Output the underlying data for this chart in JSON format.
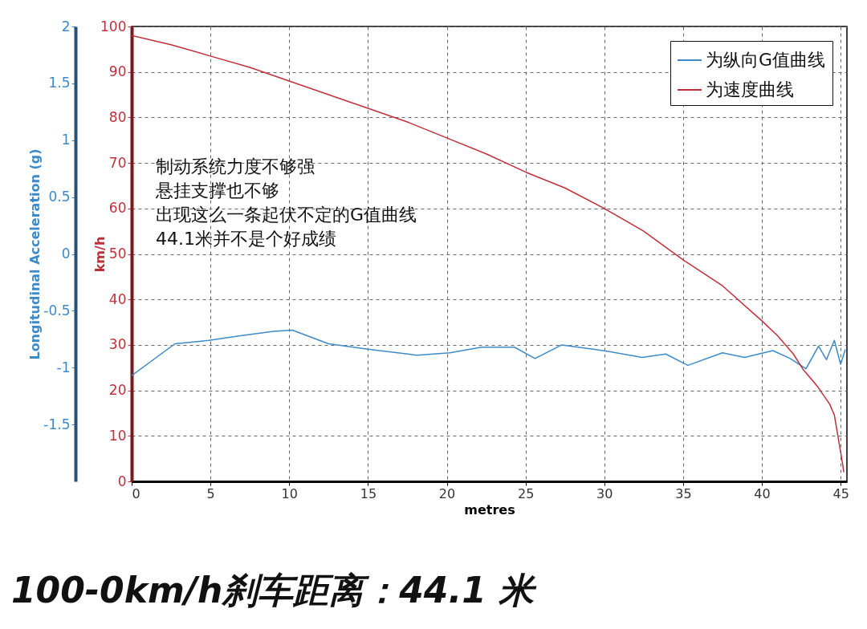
{
  "chart_data": {
    "type": "line",
    "xlabel": "metres",
    "ylabel": "Longitudinal Acceleration (g)",
    "y2label": "km/h",
    "xlim": [
      0,
      45.4
    ],
    "xticks": [
      0,
      5,
      10,
      15,
      20,
      25,
      30,
      35,
      40,
      45
    ],
    "ylim": [
      -2,
      2
    ],
    "yticks": [
      -1.5,
      -1,
      -0.5,
      0,
      0.5,
      1,
      1.5,
      2
    ],
    "y2lim": [
      0,
      100
    ],
    "y2ticks": [
      0,
      10,
      20,
      30,
      40,
      50,
      60,
      70,
      80,
      90,
      100
    ],
    "grid": true,
    "legend": "top right",
    "marker": "none",
    "line_style": "solid",
    "series": [
      {
        "name": "为纵向G值曲线",
        "color": "#3d8ac8",
        "x": [
          0,
          2.75,
          4.9,
          6.9,
          9,
          10.2,
          12.5,
          15.1,
          18.1,
          20.2,
          22.2,
          24.3,
          25.6,
          27.3,
          29.4,
          30.4,
          32.4,
          33.9,
          35.3,
          37.5,
          38.9,
          40.7,
          41.8,
          42.8,
          43.6,
          44.1,
          44.6,
          45,
          45.3
        ],
        "values": [
          -1.07,
          -0.79,
          -0.76,
          -0.72,
          -0.68,
          -0.67,
          -0.79,
          -0.84,
          -0.89,
          -0.87,
          -0.82,
          -0.82,
          -0.92,
          -0.8,
          -0.84,
          -0.86,
          -0.91,
          -0.88,
          -0.98,
          -0.87,
          -0.91,
          -0.85,
          -0.92,
          -1.01,
          -0.81,
          -0.93,
          -0.76,
          -0.97,
          -0.84
        ]
      },
      {
        "name": "为速度曲线",
        "color": "#c0303a",
        "axis": "y2",
        "x": [
          0,
          2.5,
          5,
          7.5,
          10,
          12.5,
          15,
          17.5,
          20,
          22.5,
          25,
          27.5,
          30,
          32.5,
          35,
          37.5,
          40,
          41,
          42,
          42.6,
          43.5,
          44.3,
          44.6,
          45.1,
          45.2
        ],
        "values": [
          98,
          96,
          93.5,
          91,
          88,
          85,
          82,
          79,
          75.5,
          72,
          68,
          64.5,
          60,
          55,
          48.7,
          43,
          35.3,
          32,
          28,
          24.7,
          21,
          17,
          14.6,
          4.4,
          2
        ]
      }
    ],
    "annotations": [
      "制动系统力度不够强",
      "悬挂支撑也不够",
      "出现这么一条起伏不定的G值曲线",
      "44.1米并不是个好成绩",
      "100-0km/h刹车距离：44.1 米"
    ]
  }
}
